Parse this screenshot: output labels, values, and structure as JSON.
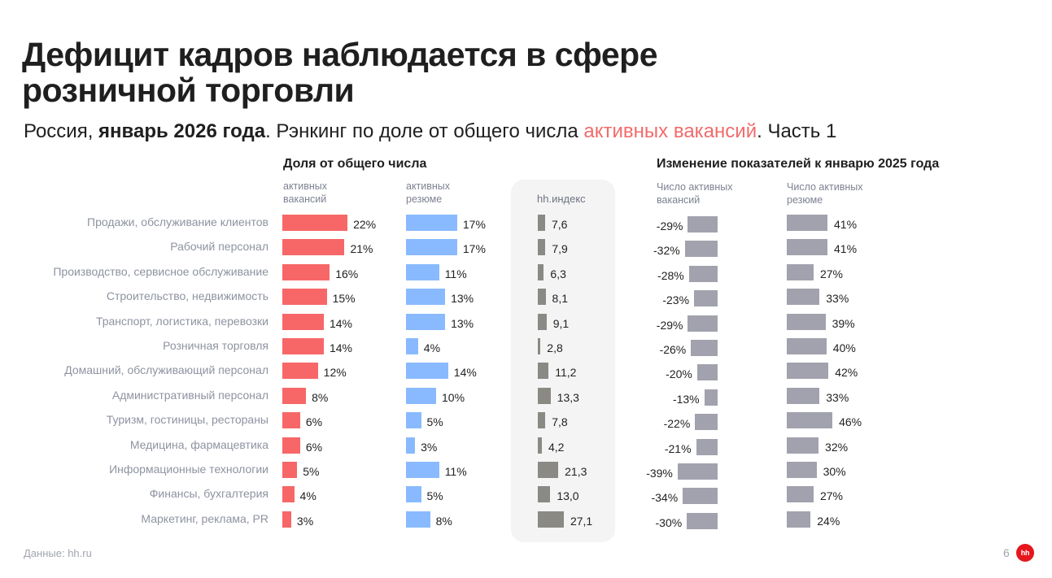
{
  "title": "Дефицит кадров наблюдается в сфере розничной торговли",
  "subtitle": {
    "part1": "Россия, ",
    "bold": "январь 2026 года",
    "part2": ". Рэнкинг по доле от общего числа ",
    "accent": "активных вакансий",
    "part3": ". Часть 1"
  },
  "colors": {
    "vacancies": "#f76767",
    "resumes": "#89baff",
    "hh_index": "#8a8984",
    "change": "#a1a2ad",
    "accent_text": "#f26b6b",
    "logo": "#e5161d"
  },
  "footer": {
    "source": "Данные: hh.ru",
    "page_number": "6",
    "logo_text": "hh"
  },
  "chart_data": {
    "type": "table",
    "title": "Дефицит кадров наблюдается в сфере розничной торговли",
    "section_share": "Доля от общего числа",
    "section_change": "Изменение показателей к январю 2025 года",
    "columns": {
      "vacancies_share": "активных вакансий",
      "resumes_share": "активных резюме",
      "hh_index": "hh.индекс",
      "vacancies_change": "Число активных вакансий",
      "resumes_change": "Число активных резюме"
    },
    "column_heads": {
      "vacancies_share": [
        "активных",
        "вакансий"
      ],
      "resumes_share": [
        "активных",
        "резюме"
      ],
      "vacancies_change": [
        "Число активных",
        "вакансий"
      ],
      "resumes_change": [
        "Число активных",
        "резюме"
      ]
    },
    "categories": [
      "Продажи, обслуживание клиентов",
      "Рабочий персонал",
      "Производство, сервисное обслуживание",
      "Строительство, недвижимость",
      "Транспорт, логистика, перевозки",
      "Розничная торговля",
      "Домашний, обслуживающий персонал",
      "Административный персонал",
      "Туризм, гостиницы, рестораны",
      "Медицина, фармацевтика",
      "Информационные технологии",
      "Финансы, бухгалтерия",
      "Маркетинг, реклама, PR"
    ],
    "series": [
      {
        "name": "Доля активных вакансий, %",
        "key": "vacancies_share",
        "values": [
          22,
          21,
          16,
          15,
          14,
          14,
          12,
          8,
          6,
          6,
          5,
          4,
          3
        ],
        "labels": [
          "22%",
          "21%",
          "16%",
          "15%",
          "14%",
          "14%",
          "12%",
          "8%",
          "6%",
          "6%",
          "5%",
          "4%",
          "3%"
        ]
      },
      {
        "name": "Доля активных резюме, %",
        "key": "resumes_share",
        "values": [
          17,
          17,
          11,
          13,
          13,
          4,
          14,
          10,
          5,
          3,
          11,
          5,
          8
        ],
        "labels": [
          "17%",
          "17%",
          "11%",
          "13%",
          "13%",
          "4%",
          "14%",
          "10%",
          "5%",
          "3%",
          "11%",
          "5%",
          "8%"
        ]
      },
      {
        "name": "hh.индекс",
        "key": "hh_index",
        "values": [
          7.6,
          7.9,
          6.3,
          8.1,
          9.1,
          2.8,
          11.2,
          13.3,
          7.8,
          4.2,
          21.3,
          13.0,
          27.1
        ],
        "labels": [
          "7,6",
          "7,9",
          "6,3",
          "8,1",
          "9,1",
          "2,8",
          "11,2",
          "13,3",
          "7,8",
          "4,2",
          "21,3",
          "13,0",
          "27,1"
        ]
      },
      {
        "name": "Изменение числа активных вакансий, %",
        "key": "vacancies_change",
        "values": [
          -29,
          -32,
          -28,
          -23,
          -29,
          -26,
          -20,
          -13,
          -22,
          -21,
          -39,
          -34,
          -30
        ],
        "labels": [
          "-29%",
          "-32%",
          "-28%",
          "-23%",
          "-29%",
          "-26%",
          "-20%",
          "-13%",
          "-22%",
          "-21%",
          "-39%",
          "-34%",
          "-30%"
        ]
      },
      {
        "name": "Изменение числа активных резюме, %",
        "key": "resumes_change",
        "values": [
          41,
          41,
          27,
          33,
          39,
          40,
          42,
          33,
          46,
          32,
          30,
          27,
          24
        ],
        "labels": [
          "41%",
          "41%",
          "27%",
          "33%",
          "39%",
          "40%",
          "42%",
          "33%",
          "46%",
          "32%",
          "30%",
          "27%",
          "24%"
        ]
      }
    ]
  }
}
